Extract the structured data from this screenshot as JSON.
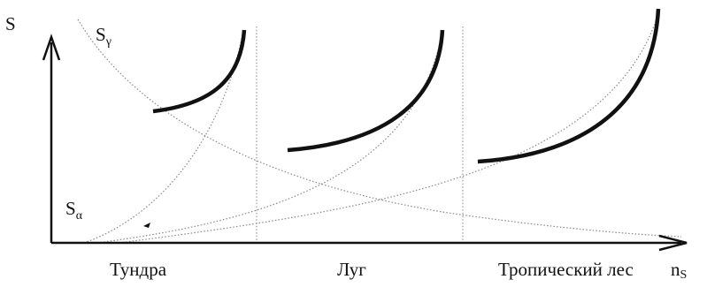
{
  "diagram": {
    "y_axis_label": "S",
    "x_axis_label_main": "n",
    "x_axis_label_sub": "S",
    "curve_gamma_main": "S",
    "curve_gamma_sub": "γ",
    "curve_alpha_main": "S",
    "curve_alpha_sub": "α",
    "regions": [
      "Тундра",
      "Луг",
      "Тропический лес"
    ]
  }
}
